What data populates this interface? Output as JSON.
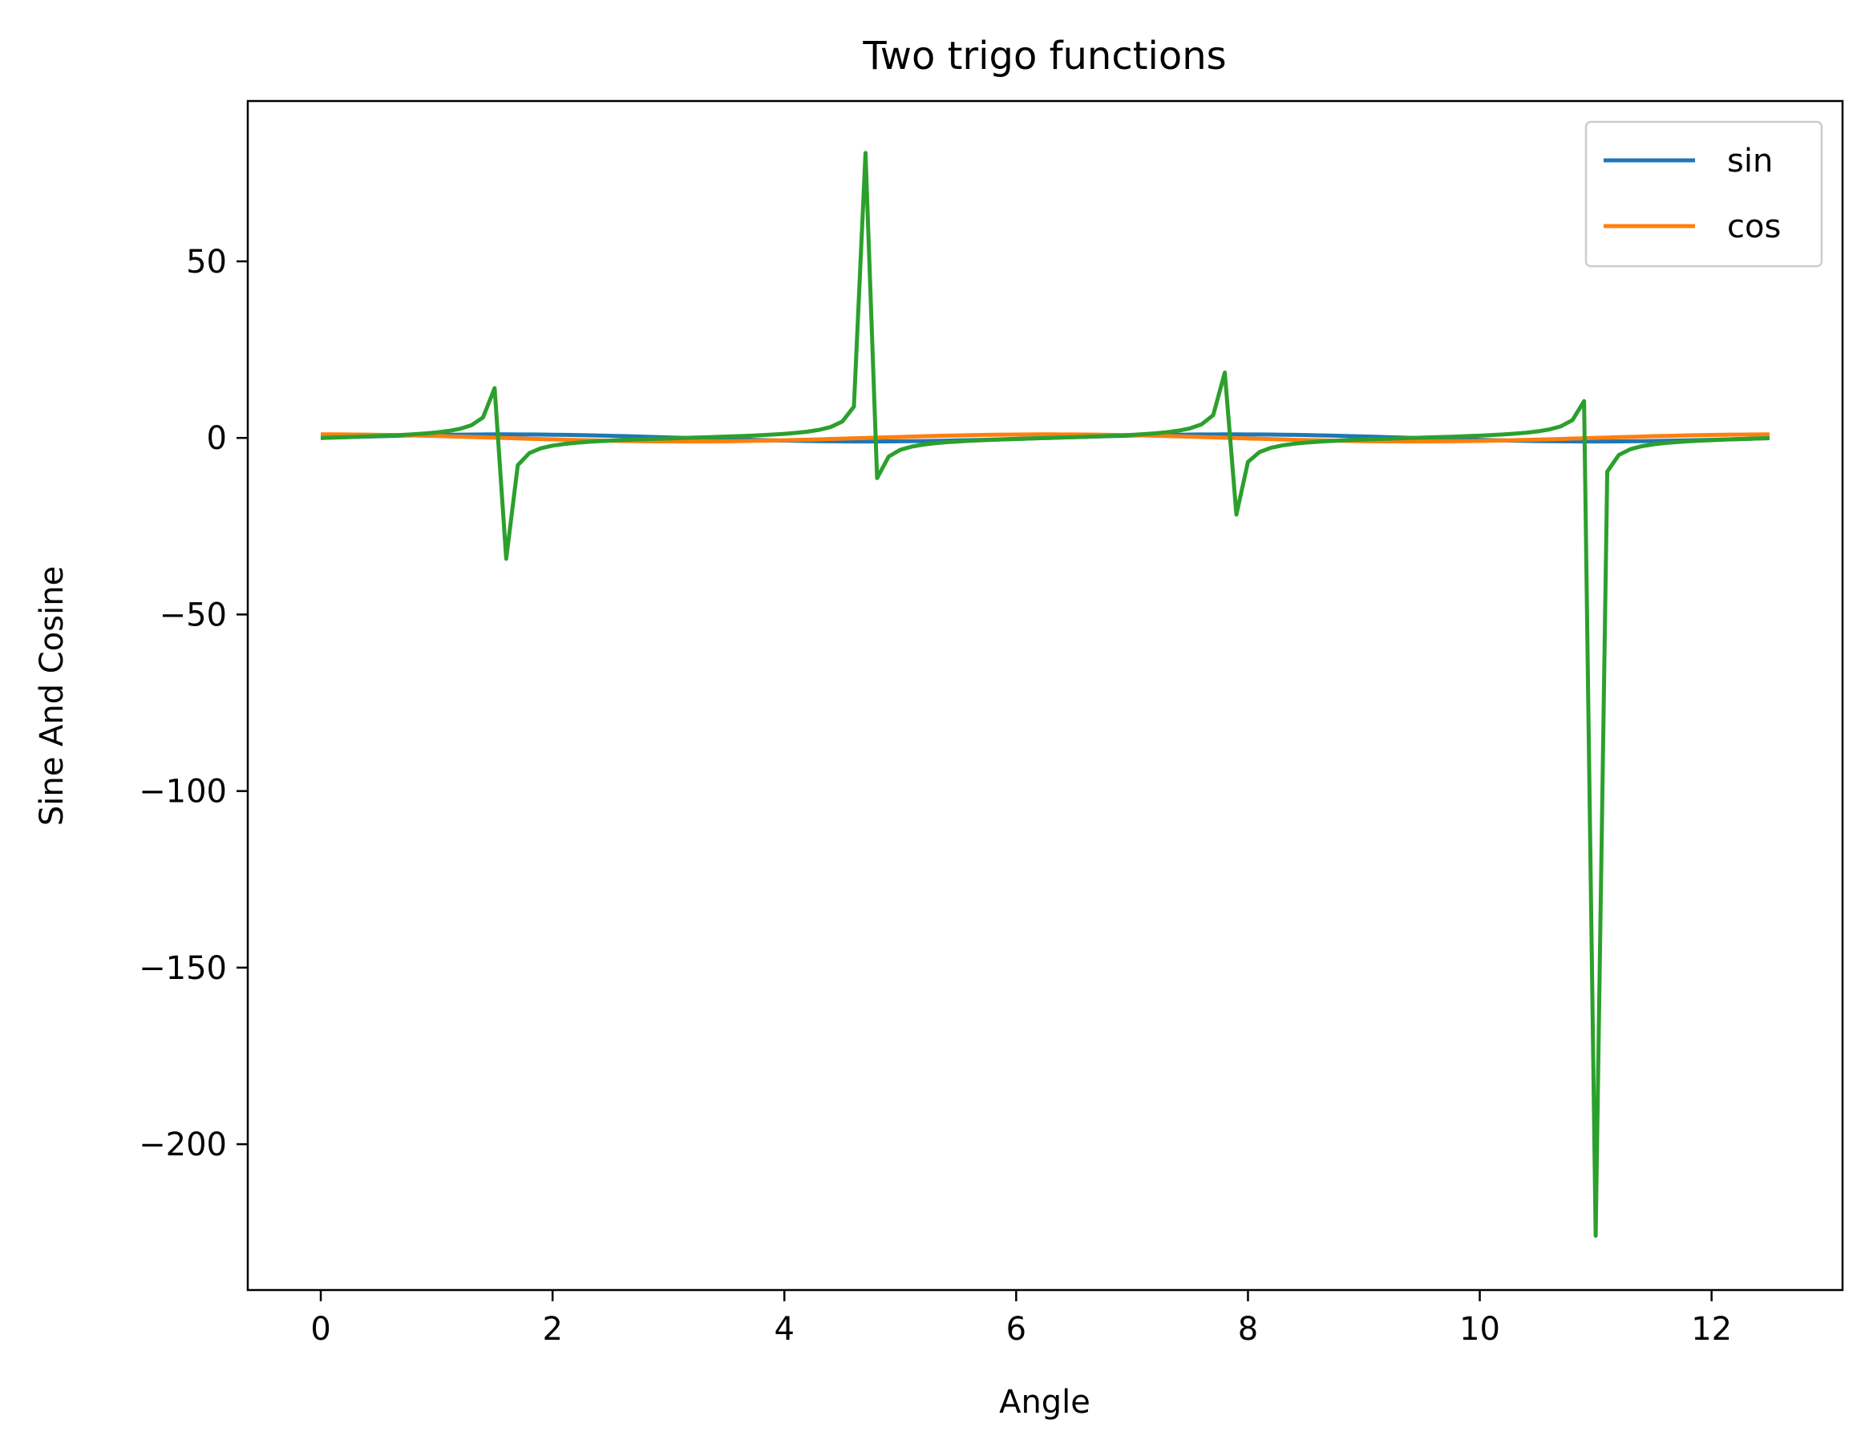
{
  "chart_data": {
    "type": "line",
    "title": "Two trigo functions",
    "xlabel": "Angle",
    "ylabel": "Sine And Cosine",
    "xlim": [
      -0.63,
      13.13
    ],
    "ylim": [
      -241.3,
      95.4
    ],
    "x_ticks": [
      {
        "value": 0,
        "label": "0"
      },
      {
        "value": 2,
        "label": "2"
      },
      {
        "value": 4,
        "label": "4"
      },
      {
        "value": 6,
        "label": "6"
      },
      {
        "value": 8,
        "label": "8"
      },
      {
        "value": 10,
        "label": "10"
      },
      {
        "value": 12,
        "label": "12"
      }
    ],
    "y_ticks": [
      {
        "value": 50,
        "label": "50"
      },
      {
        "value": 0,
        "label": "0"
      },
      {
        "value": -50,
        "label": "−50"
      },
      {
        "value": -100,
        "label": "−100"
      },
      {
        "value": -150,
        "label": "−150"
      },
      {
        "value": -200,
        "label": "−200"
      }
    ],
    "grid": false,
    "legend_position": "top-right",
    "series": [
      {
        "name": "sin",
        "color": "#1f77b4",
        "function": "sin",
        "x_start": 0,
        "x_step": 0.1,
        "count": 126
      },
      {
        "name": "cos",
        "color": "#ff7f0e",
        "function": "cos",
        "x_start": 0,
        "x_step": 0.1,
        "count": 126
      },
      {
        "color": "#2ca02c",
        "function": "tan",
        "x_start": 0,
        "x_step": 0.1,
        "count": 126
      }
    ]
  }
}
